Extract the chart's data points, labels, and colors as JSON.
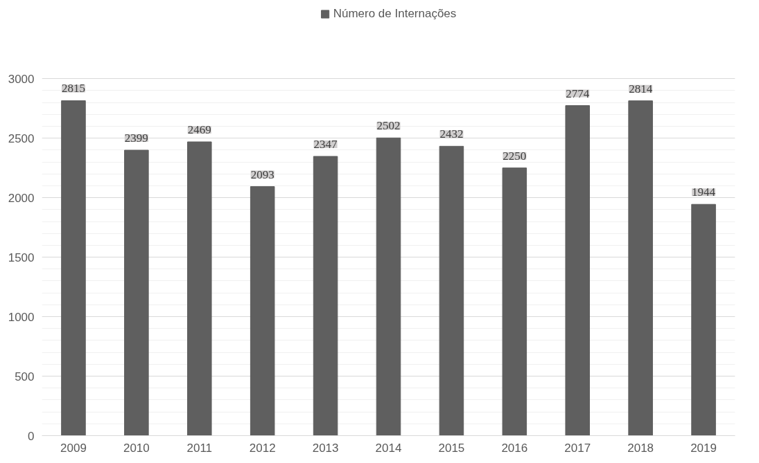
{
  "chart_data": {
    "type": "bar",
    "categories": [
      "2009",
      "2010",
      "2011",
      "2012",
      "2013",
      "2014",
      "2015",
      "2016",
      "2017",
      "2018",
      "2019"
    ],
    "series": [
      {
        "name": "Número de Internações",
        "color": "#5f5f5f",
        "values": [
          2815,
          2399,
          2469,
          2093,
          2347,
          2502,
          2432,
          2250,
          2774,
          2814,
          1944
        ]
      }
    ],
    "ylim": [
      0,
      3600
    ],
    "yticks": [
      0,
      500,
      1000,
      1500,
      2000,
      2500,
      3000
    ],
    "grid": "y",
    "legend": "top",
    "data_labels": true
  }
}
